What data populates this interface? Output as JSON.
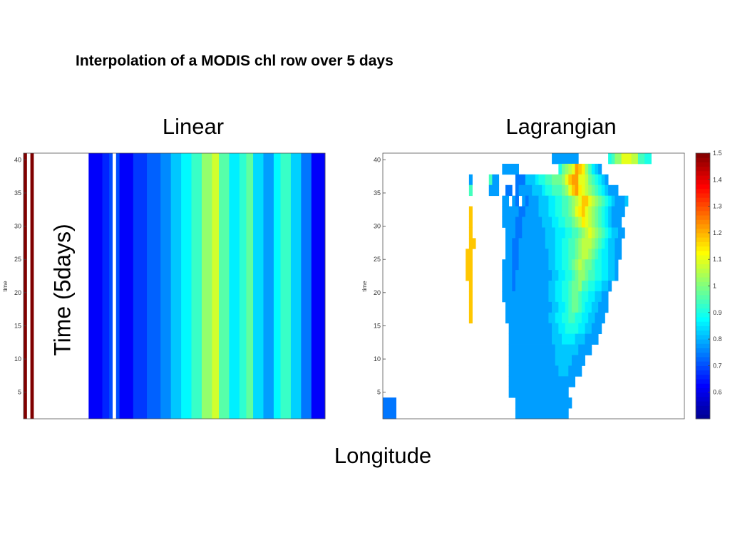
{
  "slide": {
    "title": "Interpolation of a MODIS chl row over 5 days",
    "xlabel": "Longitude",
    "ylabel": "Time (5days)"
  },
  "colormap": {
    "stops": [
      "#00008f",
      "#0000ff",
      "#0080ff",
      "#00ffff",
      "#80ff80",
      "#ffff00",
      "#ff8000",
      "#ff0000",
      "#800000"
    ],
    "missing_color": "#ffffff"
  },
  "chart_data": [
    {
      "type": "heatmap",
      "title": "Linear",
      "ylabel": "time",
      "yticks": [
        5,
        10,
        15,
        20,
        25,
        30,
        35,
        40
      ],
      "ylim": [
        1,
        41
      ],
      "columns": [
        {
          "value": 1.5,
          "weight": 1
        },
        {
          "value": null,
          "weight": 1
        },
        {
          "value": 1.5,
          "weight": 1
        },
        {
          "value": null,
          "weight": 16
        },
        {
          "value": 0.62,
          "weight": 4
        },
        {
          "value": 0.66,
          "weight": 2
        },
        {
          "value": 0.7,
          "weight": 1
        },
        {
          "value": null,
          "weight": 1
        },
        {
          "value": 0.7,
          "weight": 1
        },
        {
          "value": 0.62,
          "weight": 4
        },
        {
          "value": 0.68,
          "weight": 4
        },
        {
          "value": 0.72,
          "weight": 4
        },
        {
          "value": 0.76,
          "weight": 3
        },
        {
          "value": 0.82,
          "weight": 3
        },
        {
          "value": 0.87,
          "weight": 3
        },
        {
          "value": 0.93,
          "weight": 3
        },
        {
          "value": 1.02,
          "weight": 3
        },
        {
          "value": 1.08,
          "weight": 2
        },
        {
          "value": 0.96,
          "weight": 3
        },
        {
          "value": 0.86,
          "weight": 3
        },
        {
          "value": 0.92,
          "weight": 2
        },
        {
          "value": 0.97,
          "weight": 2
        },
        {
          "value": 0.84,
          "weight": 3
        },
        {
          "value": 0.78,
          "weight": 3
        },
        {
          "value": 0.87,
          "weight": 2
        },
        {
          "value": 0.93,
          "weight": 3
        },
        {
          "value": 0.83,
          "weight": 3
        },
        {
          "value": 0.74,
          "weight": 3
        },
        {
          "value": 0.62,
          "weight": 4
        }
      ]
    },
    {
      "type": "heatmap",
      "title": "Lagrangian",
      "ylabel": "time",
      "yticks": [
        5,
        10,
        15,
        20,
        25,
        30,
        35,
        40
      ],
      "ylim": [
        1,
        41
      ],
      "colorbar": {
        "ticks": [
          0.6,
          0.7,
          0.8,
          0.9,
          1,
          1.1,
          1.2,
          1.3,
          1.4,
          1.5
        ],
        "range": [
          0.5,
          1.5
        ]
      },
      "rows_from_top": [
        [
          "...................................................HHHHHHHH.........KLNNPPPOOLLKK..........",
          "....................................HHHHH............KMNOPSRQNLJIH.........",
          "..........................H.....LHH.....GGGIIIJKKLLMMMNPRSSPPOMLKJIH.......",
          "..........................L.....HHH..GG.GHHHHIIIJKKLLLMNPRSQPONMLKJIHHH....."
        ],
        [
          "....................................HH.HG.HGHHHIIIJJKKLLMNOPRRPONMLKJIHHHI..",
          "..........................R.........HHHHHGGHHHHIIIJJKKLLMNPQRPONMLKJIHHHH..",
          "..........................R.........HHHHGGHHHHHHIIIJJKKLLMNOQPONMLKJIHHH..",
          "..........................R..........HHHGGHHHHHHHIIIJJJKKLLMNOPONMLKJIIHH.."
        ],
        [
          "..........................RR.........HHGGHHHHHHHHIIIJJKKLLMNOOONMLKJIIHH..",
          ".........................RR..........HHGGHHHHHHHHHIIJJKKLLMNOONMLKJJIIHH..",
          ".........................RR.........HHHGGHHHHHHHHHIIJJKKLMNONMMLKKJJIIH...",
          ".........................RR.........HHHGHHHHHHHHHHHIIJJKKLMNNMLLKKJJIIH..."
        ],
        [
          "..........................R.........HHHGHHHHHHHHHHIIJJKKLMMNLLKKJJIIH....",
          "..........................R.........HHHHHHHHHHHHHHIIJJKKLMMLKKJJIIHH.....",
          "..........................R..........HHHHHHHHHHHHHHIIJJKLMMLKJJIIHHH......",
          "..........................R..........HHHHHHHHHHHHHIIJJKKLLKKJJIIHHH......."
        ],
        [
          "......................................HHHHHHHHHHHHHIIJJKKKKJJIIHHH........",
          "......................................HHHHHHHHHHHHHIIIJJJJIIIHHHH.........",
          "......................................HHHHHHHHHHHHHHIIIIIIIHHHH..........",
          "......................................HHHHHHHHHHHHHHIIIIIHHHH..........."
        ],
        [
          "......................................HHHHHHHHHHHHHHHIIIHHHH............",
          "......................................HHHHHHHHHHHHHHHHHHHH.............",
          "......................................HHHHHHHHHHHHHHHHHH.............."
        ],
        [
          "GGGG....................................HHHHHHHHHHHHHHHHH..............",
          "GGGG....................................HHHHHHHHHHHHHHHH..............."
        ]
      ]
    }
  ]
}
